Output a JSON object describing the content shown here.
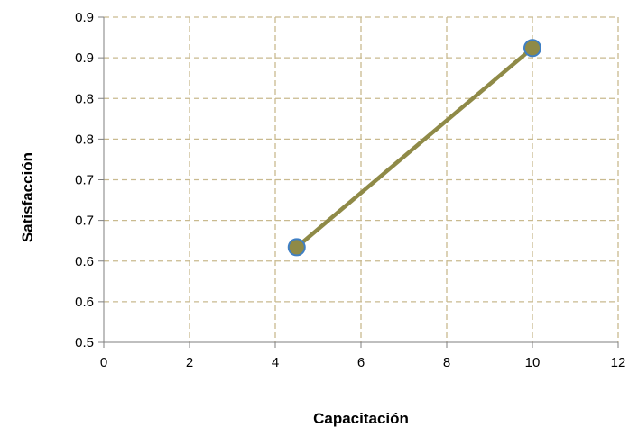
{
  "chart_data": {
    "type": "scatter",
    "title": "",
    "xlabel": "Capacitación",
    "ylabel": "Satisfacción",
    "xlim": [
      0,
      12
    ],
    "ylim": [
      0.5,
      0.9
    ],
    "x_ticks": [
      0,
      2,
      4,
      6,
      8,
      10,
      12
    ],
    "x_tick_labels": [
      "0",
      "2",
      "4",
      "6",
      "8",
      "10",
      "12"
    ],
    "y_ticks": [
      0.5,
      0.55,
      0.6,
      0.65,
      0.7,
      0.75,
      0.8,
      0.85,
      0.9
    ],
    "y_tick_labels": [
      "0.5",
      "0.6",
      "0.6",
      "0.7",
      "0.7",
      "0.8",
      "0.8",
      "0.9",
      "0.9"
    ],
    "grid": true,
    "legend": "none",
    "series": [
      {
        "points": [
          {
            "x": 4.5,
            "y": 0.617
          },
          {
            "x": 10,
            "y": 0.862
          }
        ],
        "marker_fill": "#8f8a47",
        "marker_edge": "#3f7fc4",
        "line_color": "#8f8a47"
      }
    ],
    "colors": {
      "grid": "#c9ba8f",
      "axis": "#7f7f7f"
    }
  }
}
